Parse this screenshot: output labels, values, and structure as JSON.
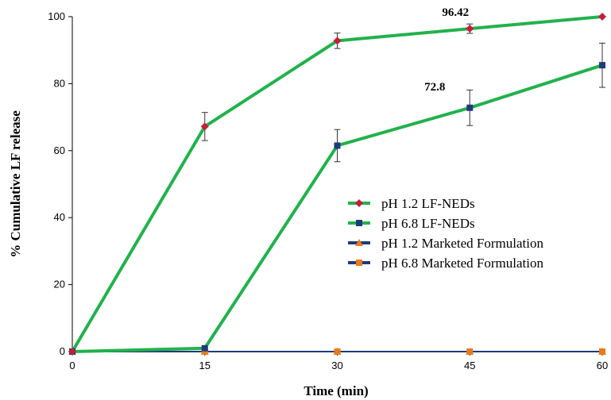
{
  "chart_data": {
    "type": "line",
    "xlabel": "Time (min)",
    "ylabel": "% Cumulative  LF  release",
    "x": [
      0,
      15,
      30,
      45,
      60
    ],
    "xticks": [
      "0",
      "15",
      "30",
      "45",
      "60"
    ],
    "yticks": [
      "0",
      "20",
      "40",
      "60",
      "80",
      "100"
    ],
    "xlim": [
      0,
      60
    ],
    "ylim": [
      0,
      100
    ],
    "grid": false,
    "legend_position": "center-right",
    "series": [
      {
        "name": "pH 1.2 LF-NEDs",
        "values": [
          0,
          67.2,
          92.8,
          96.42,
          100
        ],
        "errors": [
          0,
          4.2,
          2.3,
          1.4,
          0
        ],
        "line_color": "#22b14c",
        "marker": "diamond",
        "marker_color": "#c0203a"
      },
      {
        "name": "pH 6.8 LF-NEDs",
        "values": [
          0,
          1.0,
          61.5,
          72.8,
          85.5
        ],
        "errors": [
          0,
          0.3,
          4.8,
          5.3,
          6.6
        ],
        "line_color": "#22b14c",
        "marker": "square",
        "marker_color": "#1f3a7a"
      },
      {
        "name": "pH 1.2 Marketed Formulation",
        "values": [
          0,
          0,
          0,
          0,
          0
        ],
        "line_color": "#1f3a7a",
        "marker": "triangle",
        "marker_color": "#e87a1e"
      },
      {
        "name": "pH 6.8 Marketed Formulation",
        "values": [
          0,
          0,
          0,
          0,
          0
        ],
        "line_color": "#1f3a7a",
        "marker": "square",
        "marker_color": "#e87a1e"
      }
    ],
    "annotations": [
      {
        "text": "96.42",
        "series": 0,
        "point": 3
      },
      {
        "text": "72.8",
        "series": 1,
        "point": 3
      }
    ]
  }
}
